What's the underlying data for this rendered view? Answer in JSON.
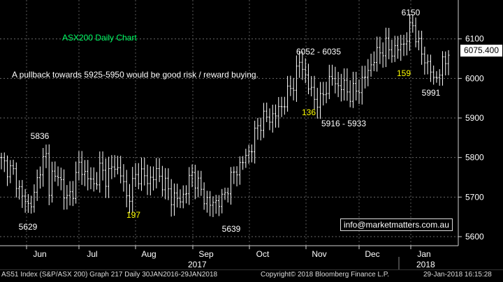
{
  "chart_data": {
    "type": "ohlc-bar",
    "title": "ASX200 Daily Chart",
    "subtitle": "A pullback towards 5925-5950 would be good risk / reward buying.",
    "ylim": [
      5580,
      6180
    ],
    "y_ticks": [
      5600,
      5700,
      5800,
      5900,
      6000,
      6100
    ],
    "x_ticks": [
      "Jun",
      "Jul",
      "Aug",
      "Sep",
      "Oct",
      "Nov",
      "Dec",
      "Jan"
    ],
    "x_years": [
      "2017",
      "2018"
    ],
    "last_price": "6075.400",
    "annotations": [
      {
        "text": "5836",
        "color": "#ffffff"
      },
      {
        "text": "5629",
        "color": "#ffffff"
      },
      {
        "text": "197",
        "color": "#ffff00"
      },
      {
        "text": "5639",
        "color": "#ffffff"
      },
      {
        "text": "6052 - 6035",
        "color": "#ffffff"
      },
      {
        "text": "136",
        "color": "#ffff00"
      },
      {
        "text": "5916 - 5933",
        "color": "#ffffff"
      },
      {
        "text": "6150",
        "color": "#ffffff"
      },
      {
        "text": "159",
        "color": "#ffff00"
      },
      {
        "text": "5991",
        "color": "#ffffff"
      }
    ],
    "anchors": [
      [
        0,
        5790
      ],
      [
        4,
        5760
      ],
      [
        7,
        5700
      ],
      [
        9,
        5680
      ],
      [
        11,
        5700
      ],
      [
        13,
        5780
      ],
      [
        15,
        5800
      ],
      [
        16,
        5720
      ],
      [
        17,
        5760
      ],
      [
        20,
        5740
      ],
      [
        22,
        5690
      ],
      [
        24,
        5720
      ],
      [
        26,
        5780
      ],
      [
        28,
        5760
      ],
      [
        31,
        5730
      ],
      [
        33,
        5770
      ],
      [
        35,
        5750
      ],
      [
        38,
        5780
      ],
      [
        40,
        5760
      ],
      [
        42,
        5700
      ],
      [
        43,
        5710
      ],
      [
        45,
        5750
      ],
      [
        47,
        5760
      ],
      [
        49,
        5740
      ],
      [
        52,
        5760
      ],
      [
        55,
        5730
      ],
      [
        57,
        5700
      ],
      [
        58,
        5700
      ],
      [
        60,
        5690
      ],
      [
        62,
        5720
      ],
      [
        64,
        5760
      ],
      [
        66,
        5730
      ],
      [
        68,
        5700
      ],
      [
        70,
        5680
      ],
      [
        72,
        5690
      ],
      [
        74,
        5690
      ],
      [
        76,
        5730
      ],
      [
        78,
        5760
      ],
      [
        80,
        5780
      ],
      [
        82,
        5800
      ],
      [
        84,
        5830
      ],
      [
        86,
        5880
      ],
      [
        88,
        5900
      ],
      [
        90,
        5900
      ],
      [
        92,
        5910
      ],
      [
        94,
        5930
      ],
      [
        96,
        5960
      ],
      [
        98,
        5990
      ],
      [
        100,
        6040
      ],
      [
        101,
        6030
      ],
      [
        103,
        5980
      ],
      [
        105,
        5950
      ],
      [
        107,
        5940
      ],
      [
        109,
        5980
      ],
      [
        111,
        6000
      ],
      [
        113,
        5980
      ],
      [
        115,
        5980
      ],
      [
        117,
        5960
      ],
      [
        119,
        5970
      ],
      [
        121,
        5990
      ],
      [
        123,
        6020
      ],
      [
        125,
        6050
      ],
      [
        127,
        6070
      ],
      [
        129,
        6080
      ],
      [
        131,
        6070
      ],
      [
        133,
        6075
      ],
      [
        135,
        6090
      ],
      [
        137,
        6120
      ],
      [
        138,
        6140
      ],
      [
        140,
        6080
      ],
      [
        142,
        6050
      ],
      [
        144,
        6020
      ],
      [
        145,
        5995
      ],
      [
        147,
        6020
      ],
      [
        149,
        6045
      ],
      [
        150,
        6075
      ]
    ]
  },
  "footer": {
    "left": "AS51 Index (S&P/ASX 200) Graph 217  Daily 30JAN2016-29JAN2018",
    "copyright": "Copyright© 2018 Bloomberg Finance L.P.",
    "date": "29-Jan-2018 16:15:28"
  },
  "watermark": "info@marketmatters.com.au"
}
